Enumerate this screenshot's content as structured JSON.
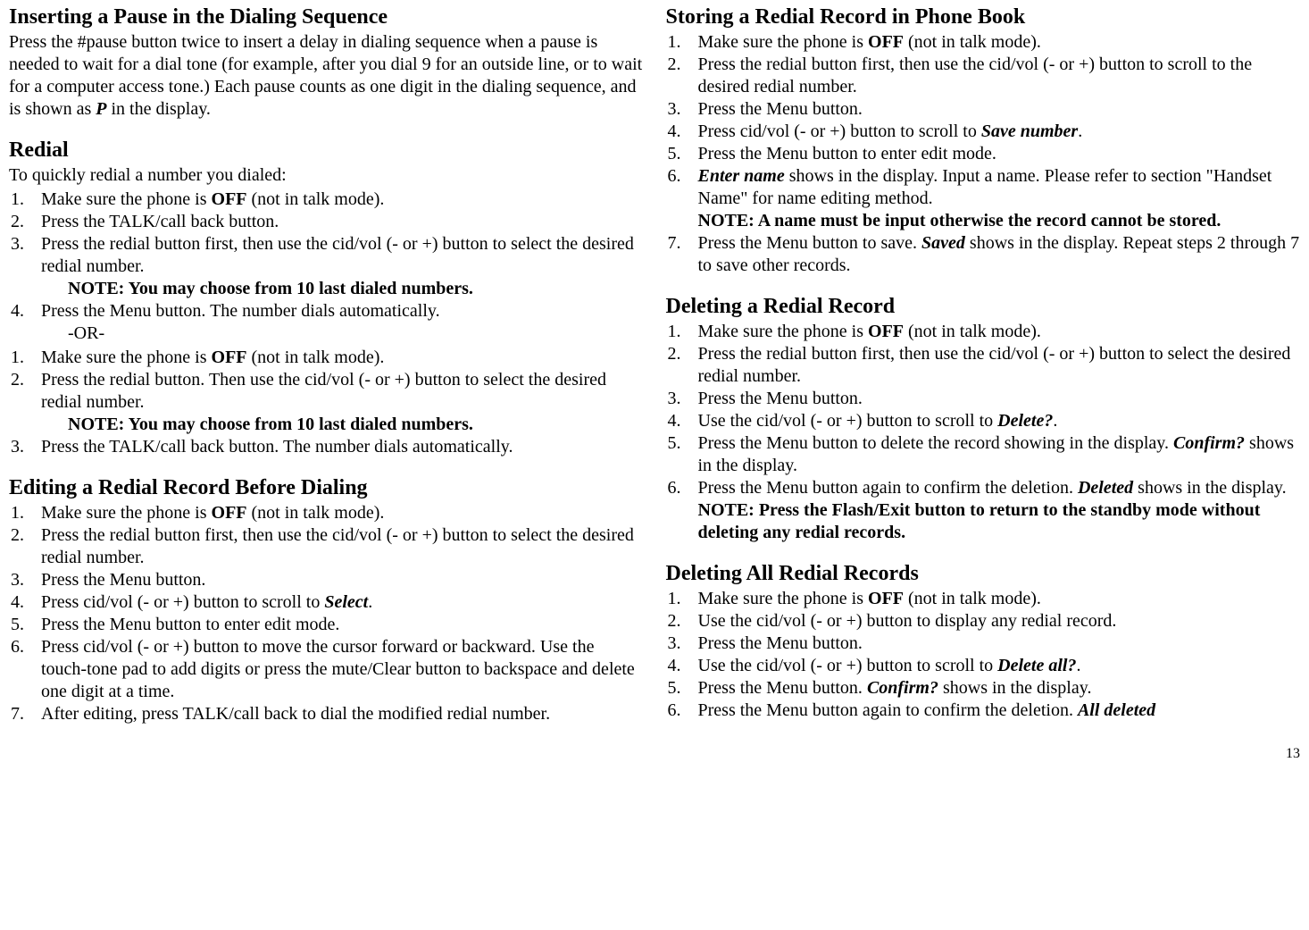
{
  "left": {
    "pause_heading": "Inserting a Pause in the Dialing Sequence",
    "pause_para_1": "Press the #pause button twice to insert a delay in dialing sequence when a pause is needed to wait for a dial tone (for example, after you dial 9 for an outside line, or to wait for a computer access tone.) Each pause counts as one digit in the dialing sequence, and is shown as ",
    "pause_para_P": "P",
    "pause_para_2": " in the display.",
    "redial_heading": "Redial",
    "redial_intro": "To quickly redial a number you dialed:",
    "redial_a": {
      "li1_a": "Make sure the phone is ",
      "li1_b": "OFF",
      "li1_c": " (not in talk mode).",
      "li2": "Press the TALK/call back button.",
      "li3": "Press the redial button first, then use the cid/vol (- or +) button to select the desired redial number.",
      "note": "NOTE: You may choose from 10 last dialed numbers.",
      "li4": "Press the Menu button. The number dials automatically."
    },
    "or": "-OR-",
    "redial_b": {
      "li1_a": "Make sure the phone is ",
      "li1_b": "OFF",
      "li1_c": " (not in talk mode).",
      "li2": "Press the redial button. Then use the cid/vol (- or +) button to select the desired redial number.",
      "note": "NOTE: You may choose from 10 last dialed numbers.",
      "li3": "Press the TALK/call back button. The number dials automatically."
    },
    "edit_heading": "Editing a Redial Record Before Dialing",
    "edit": {
      "li1_a": "Make sure the phone is ",
      "li1_b": "OFF",
      "li1_c": " (not in talk mode).",
      "li2": "Press the redial button first, then use the cid/vol (- or +) button to select the desired redial number.",
      "li3": "Press the Menu button.",
      "li4_a": "Press cid/vol (- or +) button to scroll to ",
      "li4_b": "Select",
      "li4_c": ".",
      "li5": "Press the Menu button to enter edit mode.",
      "li6": "Press cid/vol (- or +) button to move the cursor forward or backward. Use the touch-tone pad to add digits or press the mute/Clear button to backspace and delete one digit at a time.",
      "li7": "After editing, press TALK/call back to dial the modified redial number."
    }
  },
  "right": {
    "store_heading": "Storing a Redial Record in Phone Book",
    "store": {
      "li1_a": "Make sure the phone is ",
      "li1_b": "OFF",
      "li1_c": " (not in talk mode).",
      "li2": "Press the redial button first, then use the cid/vol (- or +) button to scroll to the desired redial number.",
      "li3": "Press the Menu button.",
      "li4_a": "Press cid/vol (- or +) button to scroll to ",
      "li4_b": "Save number",
      "li4_c": ".",
      "li5": "Press the Menu button to enter edit mode.",
      "li6_a": "Enter name",
      "li6_b": " shows in the display. Input a name. Please refer to section \"Handset Name\" for name editing method.",
      "note": "NOTE: A name must be input otherwise the record cannot be stored.",
      "li7_a": " Press the Menu button to save. ",
      "li7_b": "Saved",
      "li7_c": " shows in the display. Repeat steps 2 through 7 to save other records."
    },
    "delete_heading": "Deleting a Redial Record",
    "delete": {
      "li1_a": "Make sure the phone is ",
      "li1_b": "OFF",
      "li1_c": " (not in talk mode).",
      "li2": "Press the redial button first, then use the cid/vol (- or +) button to select the desired redial number.",
      "li3": "Press the Menu button.",
      "li4_a": "Use the cid/vol (- or +) button to scroll to ",
      "li4_b": "Delete?",
      "li4_c": ".",
      "li5_a": "Press the Menu button to delete the record showing in the display. ",
      "li5_b": "Confirm?",
      "li5_c": " shows in the display.",
      "li6_a": "Press the Menu button again to confirm the deletion. ",
      "li6_b": "Deleted",
      "li6_c": " shows in the display.",
      "note_a": "NOTE: Press the Flash/Exit button to return to the standby mode without deleting any redial records",
      "note_b": "."
    },
    "delete_all_heading": "Deleting All Redial Records",
    "delete_all": {
      "li1_a": "Make sure the phone is ",
      "li1_b": "OFF",
      "li1_c": " (not in talk mode).",
      "li2": "Use the cid/vol (- or +) button to display any redial record.",
      "li3": "Press the Menu button.",
      "li4_a": "Use the cid/vol (- or +) button to scroll to ",
      "li4_b": "Delete all?",
      "li4_c": ".",
      "li5_a": "Press the Menu button. ",
      "li5_b": "Confirm?",
      "li5_c": " shows in the display.",
      "li6_a": "Press the Menu button again to confirm the deletion. ",
      "li6_b": "All deleted"
    }
  },
  "page_number": "13"
}
